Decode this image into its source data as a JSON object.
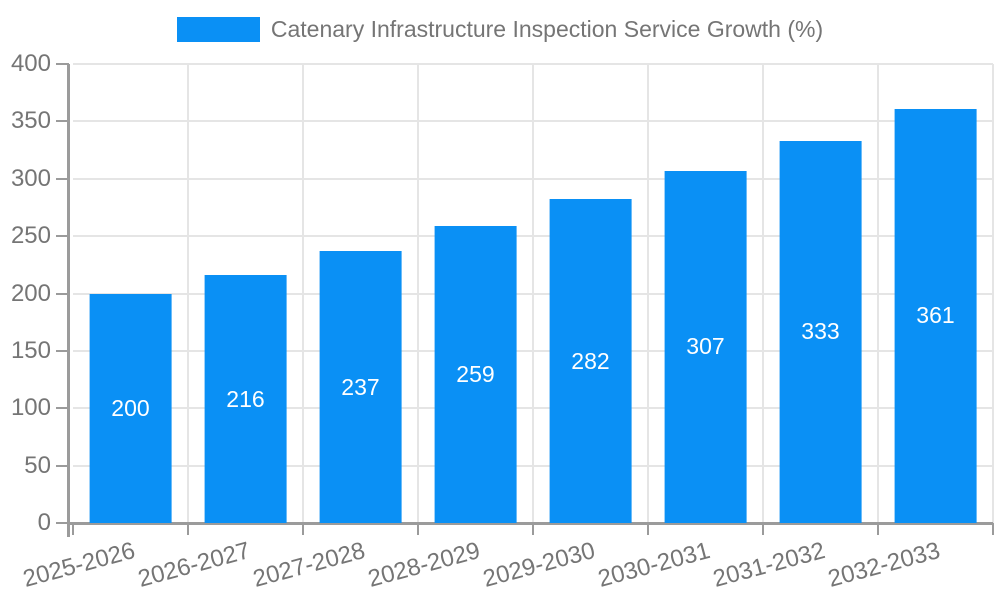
{
  "chart_data": {
    "type": "bar",
    "title": "Catenary Infrastructure Inspection Service Growth (%)",
    "legend": {
      "position": "top",
      "label": "Catenary Infrastructure Inspection Service Growth (%)"
    },
    "categories": [
      "2025-2026",
      "2026-2027",
      "2027-2028",
      "2028-2029",
      "2029-2030",
      "2030-2031",
      "2031-2032",
      "2032-2033"
    ],
    "values": [
      200,
      216,
      237,
      259,
      282,
      307,
      333,
      361
    ],
    "value_labels": [
      "200",
      "216",
      "237",
      "259",
      "282",
      "307",
      "333",
      "361"
    ],
    "xlabel": "",
    "ylabel": "",
    "ylim": [
      0,
      400
    ],
    "yticks": [
      0,
      50,
      100,
      150,
      200,
      250,
      300,
      350,
      400
    ],
    "grid": true,
    "x_label_rotation_deg": -15,
    "bar_width_fraction": 0.72,
    "colors": {
      "bar": "#0a90f5",
      "grid": "#e5e5e5",
      "axis": "#9b9b9b",
      "text": "#757575",
      "value_label": "#ffffff",
      "background": "#ffffff"
    }
  }
}
